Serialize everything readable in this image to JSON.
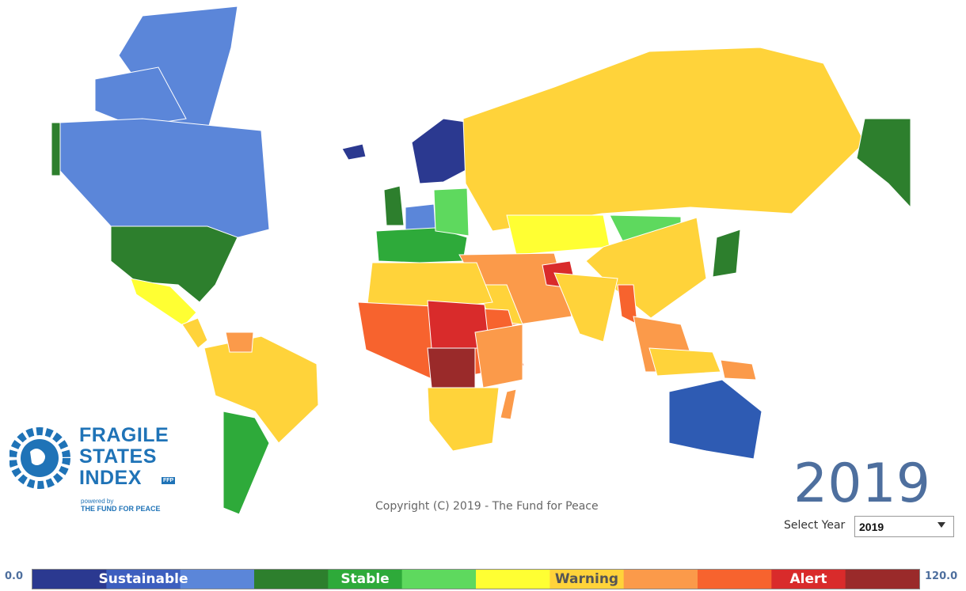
{
  "logo": {
    "lines": [
      "FRAGILE",
      "STATES",
      "INDEX"
    ],
    "tag": "FFP",
    "powered_by": "powered by",
    "organization": "THE FUND FOR PEACE"
  },
  "copyright": "Copyright (C) 2019 - The Fund for Peace",
  "year_display": "2019",
  "select_label": "Select Year",
  "select_value": "2019",
  "legend": {
    "min": {
      "value": 0,
      "label": "0.0"
    },
    "max": {
      "value": 120,
      "label": "120.0"
    },
    "colors": [
      "#2b3990",
      "#3d5fbf",
      "#5b86d9",
      "#2d7f2d",
      "#2eaa3a",
      "#5ed95e",
      "#ffff33",
      "#ffd33a",
      "#fb9a4a",
      "#f7632e",
      "#d92b2b",
      "#9a2a2a"
    ],
    "groups": [
      {
        "label": "Sustainable",
        "color": "#ffffff"
      },
      {
        "label": "Stable",
        "color": "#ffffff"
      },
      {
        "label": "Warning",
        "color": "#555555"
      },
      {
        "label": "Alert",
        "color": "#ffffff"
      }
    ]
  }
}
